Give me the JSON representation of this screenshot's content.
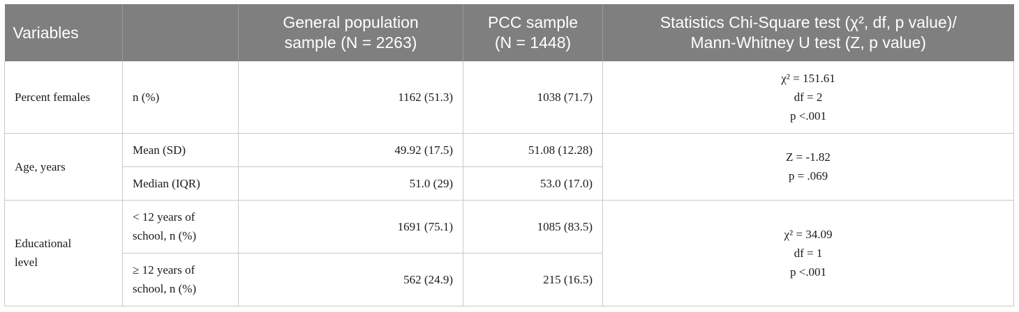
{
  "headers": {
    "variables": "Variables",
    "blank": "",
    "general": [
      "General population",
      "sample (N = 2263)"
    ],
    "pcc": [
      "PCC sample",
      "(N = 1448)"
    ],
    "stats": [
      "Statistics Chi-Square test (χ², df, p value)/",
      "Mann-Whitney U test (Z, p value)"
    ]
  },
  "rows": {
    "females": {
      "variable": "Percent females",
      "measure": "n (%)",
      "general": "1162 (51.3)",
      "pcc": "1038 (71.7)",
      "stats": [
        "χ² = 151.61",
        "df = 2",
        "p <.001"
      ]
    },
    "age": {
      "variable": "Age, years",
      "mean_measure": "Mean (SD)",
      "mean_general": "49.92 (17.5)",
      "mean_pcc": "51.08 (12.28)",
      "median_measure": "Median (IQR)",
      "median_general": "51.0 (29)",
      "median_pcc": "53.0 (17.0)",
      "stats": [
        "Z = -1.82",
        "p = .069"
      ]
    },
    "education": {
      "variable": [
        "Educational",
        "level"
      ],
      "low_measure": [
        "< 12 years of",
        "school, n (%)"
      ],
      "low_general": "1691 (75.1)",
      "low_pcc": "1085 (83.5)",
      "high_measure": [
        "≥ 12 years of",
        "school, n (%)"
      ],
      "high_general": "562 (24.9)",
      "high_pcc": "215 (16.5)",
      "stats": [
        "χ² = 34.09",
        "df = 1",
        "p <.001"
      ]
    }
  }
}
